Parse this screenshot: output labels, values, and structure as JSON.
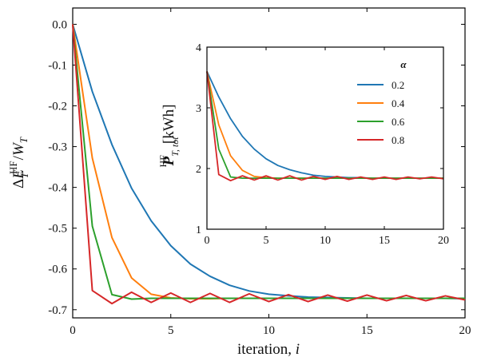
{
  "chart_data": [
    {
      "name": "main",
      "type": "line",
      "x": [
        0,
        1,
        2,
        3,
        4,
        5,
        6,
        7,
        8,
        9,
        10,
        11,
        12,
        13,
        14,
        15,
        16,
        17,
        18,
        19,
        20
      ],
      "xlim": [
        0,
        20
      ],
      "ylim": [
        -0.72,
        0.04
      ],
      "xticks": [
        0,
        5,
        10,
        15,
        20
      ],
      "yticks": [
        0.0,
        -0.1,
        -0.2,
        -0.3,
        -0.4,
        -0.5,
        -0.6,
        -0.7
      ],
      "ytick_labels": [
        "0.0",
        "-0.1",
        "-0.2",
        "-0.3",
        "-0.4",
        "-0.5",
        "-0.6",
        "-0.7"
      ],
      "xlabel": {
        "main": "iteration, ",
        "var": "i"
      },
      "ylabel": {
        "delta": "Δ",
        "var": "E",
        "sup": "HF",
        "sub": "T",
        "slash": "/",
        "var2": "W",
        "sub2": "T"
      },
      "series": [
        {
          "name": "0.2",
          "color": "#1f77b4",
          "values": [
            0.0,
            -0.165,
            -0.295,
            -0.402,
            -0.482,
            -0.543,
            -0.588,
            -0.618,
            -0.64,
            -0.654,
            -0.662,
            -0.666,
            -0.669,
            -0.67,
            -0.671,
            -0.672,
            -0.672,
            -0.672,
            -0.672,
            -0.672,
            -0.673
          ]
        },
        {
          "name": "0.4",
          "color": "#ff7f0e",
          "values": [
            0.0,
            -0.328,
            -0.523,
            -0.622,
            -0.662,
            -0.671,
            -0.673,
            -0.673,
            -0.672,
            -0.672,
            -0.672,
            -0.672,
            -0.672,
            -0.672,
            -0.672,
            -0.672,
            -0.672,
            -0.672,
            -0.672,
            -0.672,
            -0.672
          ]
        },
        {
          "name": "0.6",
          "color": "#2ca02c",
          "values": [
            0.0,
            -0.495,
            -0.663,
            -0.674,
            -0.672,
            -0.672,
            -0.672,
            -0.672,
            -0.672,
            -0.672,
            -0.672,
            -0.672,
            -0.672,
            -0.672,
            -0.672,
            -0.672,
            -0.672,
            -0.672,
            -0.672,
            -0.672,
            -0.672
          ]
        },
        {
          "name": "0.8",
          "color": "#d62728",
          "values": [
            0.0,
            -0.653,
            -0.685,
            -0.657,
            -0.682,
            -0.659,
            -0.682,
            -0.66,
            -0.682,
            -0.661,
            -0.68,
            -0.663,
            -0.68,
            -0.664,
            -0.679,
            -0.664,
            -0.678,
            -0.665,
            -0.678,
            -0.666,
            -0.676
          ]
        }
      ]
    },
    {
      "name": "inset",
      "type": "line",
      "x": [
        0,
        1,
        2,
        3,
        4,
        5,
        6,
        7,
        8,
        9,
        10,
        11,
        12,
        13,
        14,
        15,
        16,
        17,
        18,
        19,
        20
      ],
      "xlim": [
        0,
        20
      ],
      "ylim": [
        1,
        4
      ],
      "xticks": [
        0,
        5,
        10,
        15,
        20
      ],
      "yticks": [
        1,
        2,
        3,
        4
      ],
      "ylabel": {
        "var": "P",
        "sup": "HF",
        "sub": "T, tot",
        "unit": "[kWh]"
      },
      "legend": {
        "title": "α",
        "position": "top-right"
      },
      "series": [
        {
          "name": "0.2",
          "color": "#1f77b4",
          "values": [
            3.6,
            3.18,
            2.82,
            2.53,
            2.32,
            2.16,
            2.05,
            1.98,
            1.93,
            1.89,
            1.87,
            1.86,
            1.85,
            1.85,
            1.84,
            1.84,
            1.84,
            1.84,
            1.84,
            1.84,
            1.84
          ]
        },
        {
          "name": "0.4",
          "color": "#ff7f0e",
          "values": [
            3.6,
            2.72,
            2.21,
            1.97,
            1.87,
            1.85,
            1.84,
            1.84,
            1.84,
            1.84,
            1.84,
            1.84,
            1.84,
            1.84,
            1.84,
            1.84,
            1.84,
            1.84,
            1.84,
            1.84,
            1.84
          ]
        },
        {
          "name": "0.6",
          "color": "#2ca02c",
          "values": [
            3.6,
            2.32,
            1.86,
            1.84,
            1.84,
            1.84,
            1.84,
            1.84,
            1.84,
            1.84,
            1.84,
            1.84,
            1.84,
            1.84,
            1.84,
            1.84,
            1.84,
            1.84,
            1.84,
            1.84,
            1.84
          ]
        },
        {
          "name": "0.8",
          "color": "#d62728",
          "values": [
            3.6,
            1.9,
            1.8,
            1.88,
            1.81,
            1.88,
            1.81,
            1.88,
            1.81,
            1.87,
            1.82,
            1.87,
            1.82,
            1.86,
            1.82,
            1.86,
            1.82,
            1.86,
            1.83,
            1.86,
            1.83
          ]
        }
      ]
    }
  ]
}
